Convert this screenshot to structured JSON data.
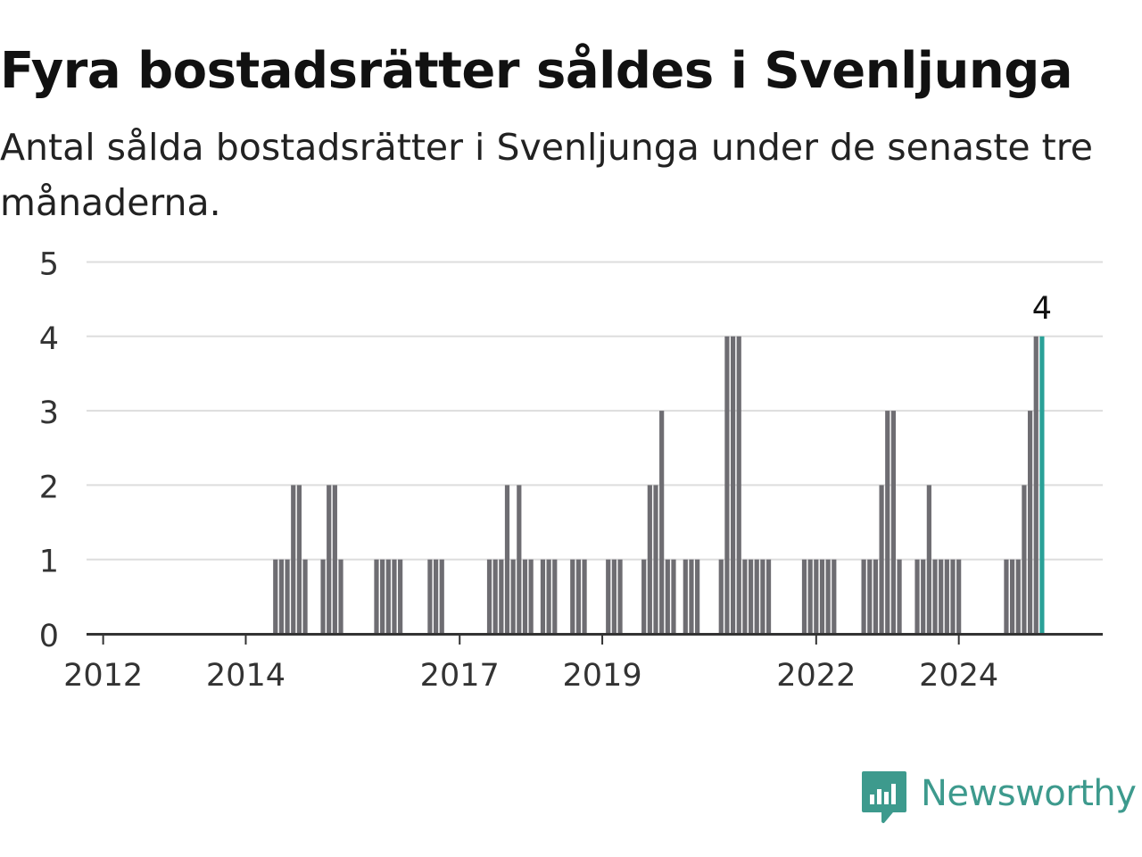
{
  "title": "Fyra bostadsrätter såldes i Svenljunga",
  "subtitle": "Antal sålda bostadsrätter i Svenljunga under de senaste tre månaderna.",
  "brand": {
    "name": "Newsworthy",
    "color": "#3d9a8d",
    "icon": "newsworthy-logo-icon"
  },
  "chart_data": {
    "type": "bar",
    "title": "Fyra bostadsrätter såldes i Svenljunga",
    "subtitle": "Antal sålda bostadsrätter i Svenljunga under de senaste tre månaderna.",
    "xlabel": "",
    "ylabel": "",
    "ylim": [
      0,
      5
    ],
    "y_ticks": [
      0,
      1,
      2,
      3,
      4,
      5
    ],
    "x_ticks": [
      "2012",
      "2014",
      "2017",
      "2019",
      "2022",
      "2024"
    ],
    "grid": true,
    "bar_color": "#6e6d72",
    "highlight_color": "#2aa198",
    "highlight_label": "4",
    "start": "2011-11",
    "interval": "month",
    "values": [
      0,
      0,
      0,
      0,
      0,
      0,
      0,
      0,
      0,
      0,
      0,
      0,
      0,
      0,
      0,
      0,
      0,
      0,
      0,
      0,
      0,
      0,
      0,
      0,
      0,
      0,
      0,
      0,
      0,
      0,
      0,
      1,
      1,
      1,
      2,
      2,
      1,
      0,
      0,
      1,
      2,
      2,
      1,
      0,
      0,
      0,
      0,
      0,
      1,
      1,
      1,
      1,
      1,
      0,
      0,
      0,
      0,
      1,
      1,
      1,
      0,
      0,
      0,
      0,
      0,
      0,
      0,
      1,
      1,
      1,
      2,
      1,
      2,
      1,
      1,
      0,
      1,
      1,
      1,
      0,
      0,
      1,
      1,
      1,
      0,
      0,
      0,
      1,
      1,
      1,
      0,
      0,
      0,
      1,
      2,
      2,
      3,
      1,
      1,
      0,
      1,
      1,
      1,
      0,
      0,
      0,
      1,
      4,
      4,
      4,
      1,
      1,
      1,
      1,
      1,
      0,
      0,
      0,
      0,
      0,
      1,
      1,
      1,
      1,
      1,
      1,
      0,
      0,
      0,
      0,
      1,
      1,
      1,
      2,
      3,
      3,
      1,
      0,
      0,
      1,
      1,
      2,
      1,
      1,
      1,
      1,
      1,
      0,
      0,
      0,
      0,
      0,
      0,
      0,
      1,
      1,
      1,
      2,
      3,
      4,
      4
    ]
  }
}
